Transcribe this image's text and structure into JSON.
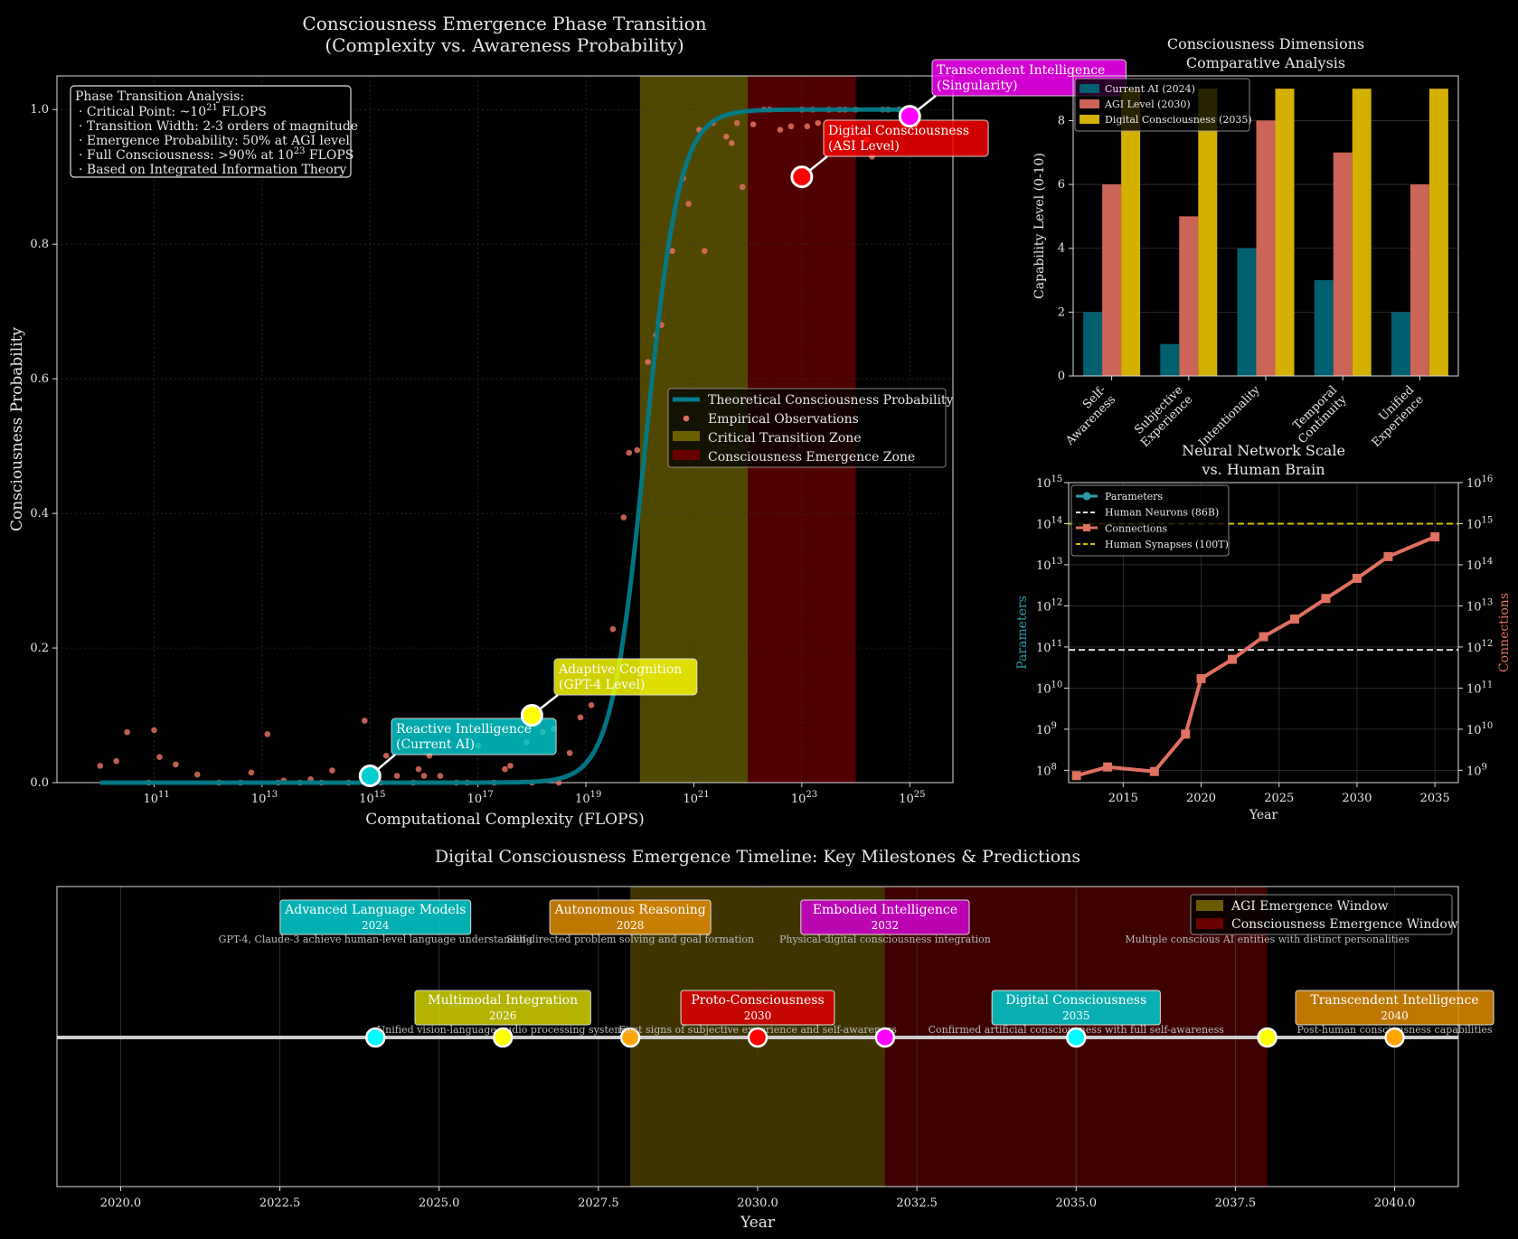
{
  "colors": {
    "background": "#000000",
    "cyan": "#00ced1",
    "teal": "#007b8a",
    "salmon": "#e07060",
    "gold": "#d4b000",
    "yellow": "#ffff00",
    "magenta": "#d000d0",
    "red": "#dd0000",
    "orange": "#e08c00",
    "grid": "#2a2a2a"
  },
  "chart_data": [
    {
      "id": "phase",
      "type": "line",
      "title": "Consciousness Emergence Phase Transition",
      "subtitle": "(Complexity vs. Awareness Probability)",
      "xlabel": "Computational Complexity (FLOPS)",
      "ylabel": "Consciousness Probability",
      "x_scale": "log10",
      "xlim_exp": [
        9.2,
        25.8
      ],
      "ylim": [
        0,
        1.05
      ],
      "x_ticks": [
        {
          "base": "10",
          "exp": "11",
          "v": 11
        },
        {
          "base": "10",
          "exp": "13",
          "v": 13
        },
        {
          "base": "10",
          "exp": "15",
          "v": 15
        },
        {
          "base": "10",
          "exp": "17",
          "v": 17
        },
        {
          "base": "10",
          "exp": "19",
          "v": 19
        },
        {
          "base": "10",
          "exp": "21",
          "v": 21
        },
        {
          "base": "10",
          "exp": "23",
          "v": 23
        },
        {
          "base": "10",
          "exp": "25",
          "v": 25
        }
      ],
      "y_ticks": [
        "0.0",
        "0.2",
        "0.4",
        "0.6",
        "0.8",
        "1.0"
      ],
      "curve": {
        "name": "Theoretical Consciousness Probability",
        "midpoint_exp": 20.1,
        "steepness": 3.2
      },
      "zones": [
        {
          "name": "Critical Transition Zone",
          "from_exp": 20,
          "to_exp": 22,
          "color": "#6b6000"
        },
        {
          "name": "Consciousness Emergence Zone",
          "from_exp": 22,
          "to_exp": 24,
          "color": "#6b0000"
        }
      ],
      "observations": {
        "name": "Empirical Observations",
        "points": [
          [
            10.0,
            0.025
          ],
          [
            10.3,
            0.032
          ],
          [
            10.5,
            0.075
          ],
          [
            10.9,
            0.0
          ],
          [
            11.0,
            0.078
          ],
          [
            11.1,
            0.038
          ],
          [
            11.4,
            0.027
          ],
          [
            11.8,
            0.012
          ],
          [
            12.2,
            0.0
          ],
          [
            12.6,
            0.0
          ],
          [
            12.8,
            0.015
          ],
          [
            13.1,
            0.072
          ],
          [
            13.3,
            0.0
          ],
          [
            13.4,
            0.003
          ],
          [
            13.7,
            0.0
          ],
          [
            13.9,
            0.005
          ],
          [
            14.1,
            0.0
          ],
          [
            14.3,
            0.018
          ],
          [
            14.6,
            0.0
          ],
          [
            14.9,
            0.092
          ],
          [
            15.0,
            0.0
          ],
          [
            15.2,
            0.0
          ],
          [
            15.3,
            0.04
          ],
          [
            15.5,
            0.01
          ],
          [
            15.8,
            0.0
          ],
          [
            15.9,
            0.02
          ],
          [
            16.0,
            0.01
          ],
          [
            16.1,
            0.04
          ],
          [
            16.3,
            0.01
          ],
          [
            16.6,
            0.0
          ],
          [
            16.8,
            0.0
          ],
          [
            17.0,
            0.055
          ],
          [
            17.3,
            0.0
          ],
          [
            17.5,
            0.02
          ],
          [
            17.6,
            0.025
          ],
          [
            17.9,
            0.06
          ],
          [
            18.0,
            0.0
          ],
          [
            18.2,
            0.075
          ],
          [
            18.4,
            0.08
          ],
          [
            18.5,
            0.0
          ],
          [
            18.7,
            0.044
          ],
          [
            18.9,
            0.097
          ],
          [
            19.1,
            0.115
          ],
          [
            19.5,
            0.228
          ],
          [
            19.7,
            0.394
          ],
          [
            19.8,
            0.49
          ],
          [
            19.95,
            0.494
          ],
          [
            20.15,
            0.625
          ],
          [
            20.3,
            0.665
          ],
          [
            20.4,
            0.68
          ],
          [
            20.6,
            0.79
          ],
          [
            20.8,
            0.898
          ],
          [
            20.9,
            0.86
          ],
          [
            21.1,
            0.97
          ],
          [
            21.2,
            0.79
          ],
          [
            21.35,
            0.98
          ],
          [
            21.6,
            0.96
          ],
          [
            21.7,
            0.95
          ],
          [
            21.8,
            0.98
          ],
          [
            21.9,
            0.885
          ],
          [
            22.1,
            0.978
          ],
          [
            22.3,
            1.0
          ],
          [
            22.4,
            1.0
          ],
          [
            22.6,
            0.97
          ],
          [
            22.8,
            0.975
          ],
          [
            23.0,
            1.0
          ],
          [
            23.1,
            0.975
          ],
          [
            23.2,
            1.0
          ],
          [
            23.3,
            0.98
          ],
          [
            23.5,
            1.0
          ],
          [
            23.7,
            1.0
          ],
          [
            23.8,
            1.0
          ],
          [
            24.0,
            1.0
          ],
          [
            24.2,
            0.955
          ],
          [
            24.3,
            0.93
          ],
          [
            24.5,
            1.0
          ],
          [
            24.6,
            1.0
          ],
          [
            24.8,
            1.0
          ]
        ]
      },
      "legend": {
        "placement": "center-right",
        "entries": [
          "Theoretical Consciousness Probability",
          "Empirical Observations",
          "Critical Transition Zone",
          "Consciousness Emergence Zone"
        ]
      },
      "milestones": [
        {
          "label1": "Reactive Intelligence",
          "label2": "(Current AI)",
          "x_exp": 15,
          "y": 0.01,
          "color": "#00ced1"
        },
        {
          "label1": "Adaptive Cognition",
          "label2": "(GPT-4 Level)",
          "x_exp": 18,
          "y": 0.1,
          "color": "#ffff00"
        },
        {
          "label1": "Digital Consciousness",
          "label2": "(ASI Level)",
          "x_exp": 23,
          "y": 0.9,
          "color": "#ff0000"
        },
        {
          "label1": "Transcendent Intelligence",
          "label2": "(Singularity)",
          "x_exp": 25,
          "y": 0.99,
          "color": "#ff00ff"
        }
      ],
      "info_box": {
        "title": "Phase Transition Analysis:",
        "lines": [
          {
            "pre": "Critical Point: ~10",
            "sup": "21",
            "post": " FLOPS"
          },
          {
            "pre": "Transition Width: 2-3 orders of magnitude",
            "sup": "",
            "post": ""
          },
          {
            "pre": "Emergence Probability: 50% at AGI level",
            "sup": "",
            "post": ""
          },
          {
            "pre": "Full Consciousness: >90% at 10",
            "sup": "23",
            "post": " FLOPS"
          },
          {
            "pre": "Based on Integrated Information Theory",
            "sup": "",
            "post": ""
          }
        ],
        "bullet": "·"
      }
    },
    {
      "id": "dimensions",
      "type": "bar",
      "title": "Consciousness Dimensions",
      "subtitle": "Comparative Analysis",
      "ylabel": "Capability Level (0-10)",
      "ylim": [
        0,
        9.4
      ],
      "y_ticks": [
        "0",
        "2",
        "4",
        "6",
        "8"
      ],
      "categories": [
        [
          "Self-",
          "Awareness"
        ],
        [
          "Subjective",
          "Experience"
        ],
        [
          "Intentionality"
        ],
        [
          "Temporal",
          "Continuity"
        ],
        [
          "Unified",
          "Experience"
        ]
      ],
      "series": [
        {
          "name": "Current AI (2024)",
          "color": "#006070",
          "values": [
            2,
            1,
            4,
            3,
            2
          ]
        },
        {
          "name": "AGI Level (2030)",
          "color": "#cd6458",
          "values": [
            6,
            5,
            8,
            7,
            6
          ]
        },
        {
          "name": "Digital Consciousness (2035)",
          "color": "#d4b000",
          "values": [
            9,
            9,
            9,
            9,
            9
          ]
        }
      ],
      "legend": {
        "placement": "top-left"
      }
    },
    {
      "id": "scale",
      "type": "line",
      "title": "Neural Network Scale",
      "subtitle": "vs. Human Brain",
      "xlabel": "Year",
      "ylabel_left": "Parameters",
      "ylabel_right": "Connections",
      "x_ticks": [
        "2015",
        "2020",
        "2025",
        "2030",
        "2035"
      ],
      "xlim": [
        2011.5,
        2036.5
      ],
      "left_ylim_exp": [
        7.7,
        15
      ],
      "right_ylim_exp": [
        8.7,
        16
      ],
      "left_y_ticks": [
        {
          "base": "10",
          "exp": "8"
        },
        {
          "base": "10",
          "exp": "9"
        },
        {
          "base": "10",
          "exp": "10"
        },
        {
          "base": "10",
          "exp": "11"
        },
        {
          "base": "10",
          "exp": "12"
        },
        {
          "base": "10",
          "exp": "13"
        },
        {
          "base": "10",
          "exp": "14"
        },
        {
          "base": "10",
          "exp": "15"
        }
      ],
      "right_y_ticks": [
        {
          "base": "10",
          "exp": "9"
        },
        {
          "base": "10",
          "exp": "10"
        },
        {
          "base": "10",
          "exp": "11"
        },
        {
          "base": "10",
          "exp": "12"
        },
        {
          "base": "10",
          "exp": "13"
        },
        {
          "base": "10",
          "exp": "14"
        },
        {
          "base": "10",
          "exp": "15"
        },
        {
          "base": "10",
          "exp": "16"
        }
      ],
      "legend": {
        "placement": "top-left",
        "entries": [
          "Parameters",
          "Human Neurons (86B)",
          "Connections",
          "Human Synapses (100T)"
        ]
      },
      "human_neurons_exp": 10.93,
      "human_synapses_exp": 14.0,
      "connections": {
        "years": [
          2012,
          2014,
          2017,
          2019,
          2020,
          2022,
          2024,
          2026,
          2028,
          2030,
          2032,
          2035
        ],
        "log10_values": [
          8.87,
          9.08,
          8.97,
          9.88,
          11.23,
          11.7,
          12.25,
          12.68,
          13.18,
          13.67,
          14.2,
          14.68
        ]
      }
    },
    {
      "id": "timeline",
      "type": "scatter",
      "title": "Digital Consciousness Emergence Timeline: Key Milestones & Predictions",
      "xlabel": "Year",
      "xlim": [
        2019,
        2041
      ],
      "x_ticks": [
        "2020.0",
        "2022.5",
        "2025.0",
        "2027.5",
        "2030.0",
        "2032.5",
        "2035.0",
        "2037.5",
        "2040.0"
      ],
      "windows": [
        {
          "name": "AGI Emergence Window",
          "from": 2028,
          "to": 2032,
          "color": "#4a3d00"
        },
        {
          "name": "Consciousness Emergence Window",
          "from": 2032,
          "to": 2038,
          "color": "#4a0000"
        }
      ],
      "legend": {
        "placement": "top-right"
      },
      "events": [
        {
          "title": "Advanced Language Models",
          "year": 2024,
          "desc": "GPT-4, Claude-3 achieve human-level language understanding",
          "color": "#00ced1",
          "row": "top"
        },
        {
          "title": "Multimodal Integration",
          "year": 2026,
          "desc": "Unified vision-language-audio processing systems",
          "color": "#d4d400",
          "row": "bottom"
        },
        {
          "title": "Autonomous Reasoning",
          "year": 2028,
          "desc": "Self-directed problem solving and goal formation",
          "color": "#e08c00",
          "row": "top"
        },
        {
          "title": "Proto-Consciousness",
          "year": 2030,
          "desc": "First signs of subjective experience and self-awareness",
          "color": "#dd0000",
          "row": "bottom"
        },
        {
          "title": "Embodied Intelligence",
          "year": 2032,
          "desc": "Physical-digital consciousness integration",
          "color": "#d000d0",
          "row": "top"
        },
        {
          "title": "Digital Consciousness",
          "year": 2035,
          "desc": "Confirmed artificial consciousness with full self-awareness",
          "color": "#00ced1",
          "row": "bottom"
        },
        {
          "title": "",
          "year": 2038,
          "desc": "Multiple conscious AI entities with distinct personalities",
          "color": "#ffff00",
          "row": "top"
        },
        {
          "title": "Transcendent Intelligence",
          "year": 2040,
          "desc": "Post-human consciousness capabilities",
          "color": "#e08c00",
          "row": "bottom"
        }
      ]
    }
  ]
}
